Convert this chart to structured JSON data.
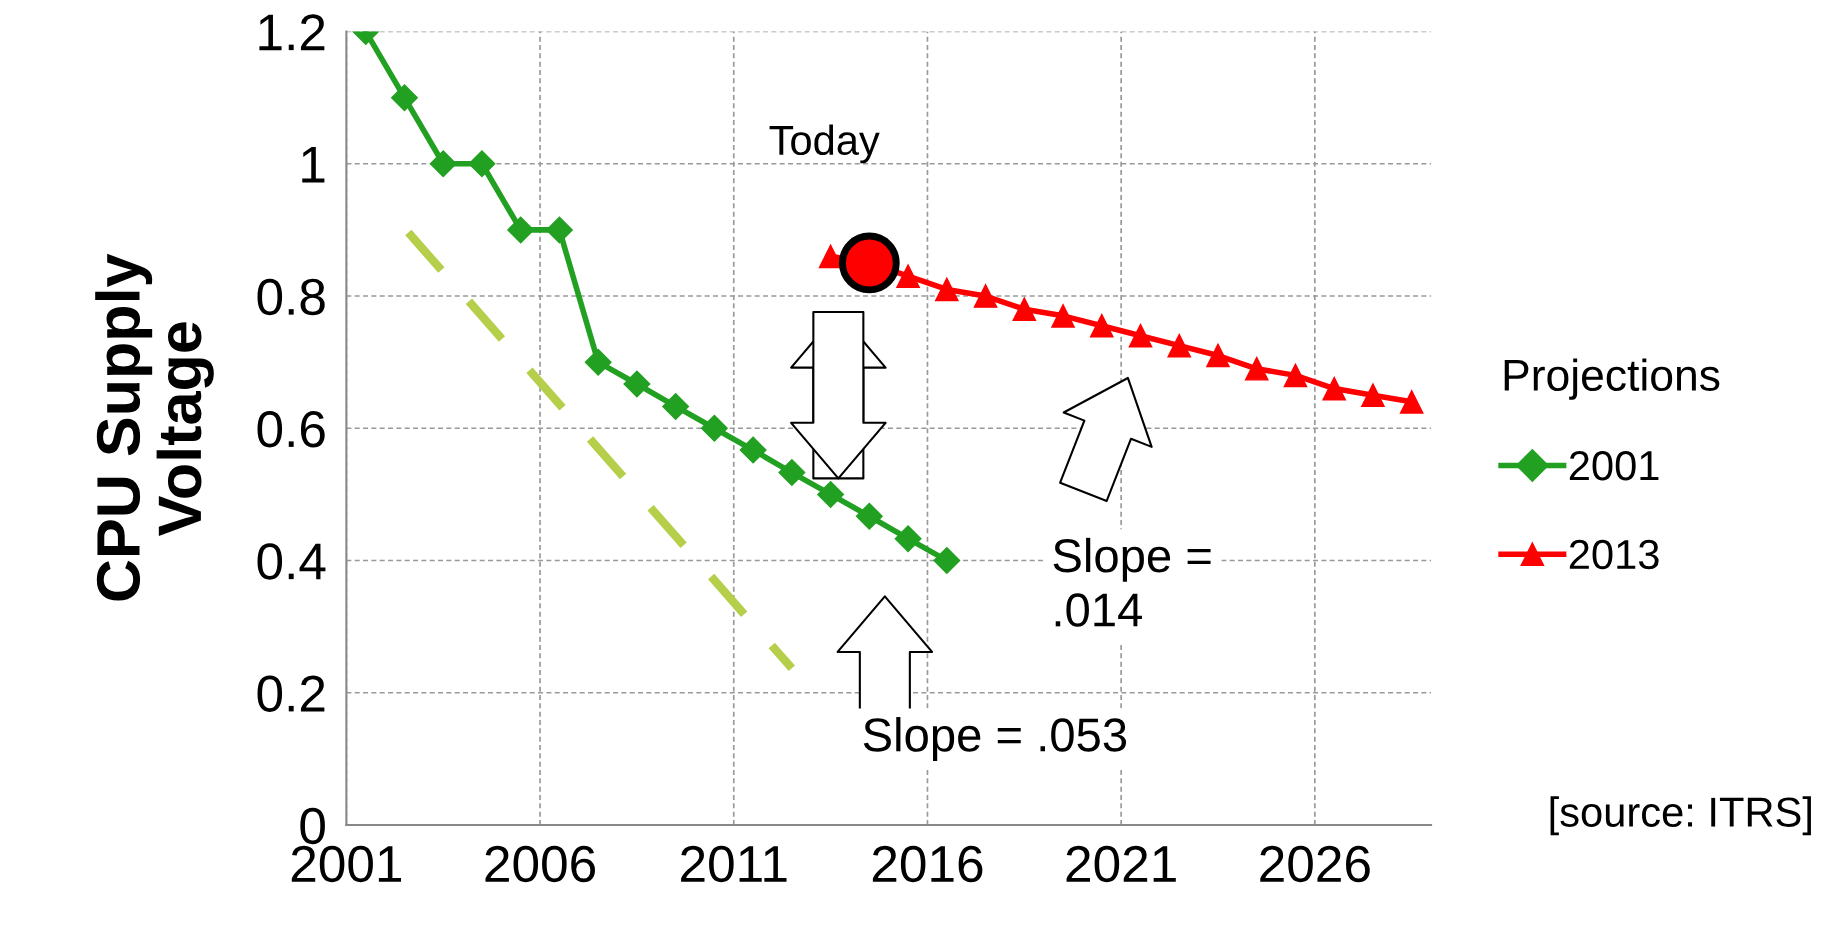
{
  "chart_data": {
    "type": "line",
    "ylabel": "CPU Supply\nVoltage",
    "legend_title": "Projections",
    "xlim": [
      2001,
      2029
    ],
    "xticks": [
      2001,
      2006,
      2011,
      2016,
      2021,
      2026
    ],
    "ylim": [
      0,
      1.2
    ],
    "yticks": [
      0,
      0.2,
      0.4,
      0.6,
      0.8,
      1,
      1.2
    ],
    "grid": true,
    "legend": "right",
    "series": [
      {
        "name": "2001",
        "color": "#22a022",
        "marker": "diamond",
        "x": [
          2001.5,
          2002.5,
          2003.5,
          2004.5,
          2005.5,
          2006.5,
          2007.5,
          2008.5,
          2009.5,
          2010.5,
          2011.5,
          2012.5,
          2013.5,
          2014.5,
          2015.5,
          2016.5
        ],
        "values": [
          1.2,
          1.1,
          1.0,
          1.0,
          0.9,
          0.9,
          0.7,
          0.667,
          0.633,
          0.6,
          0.567,
          0.533,
          0.5,
          0.467,
          0.433,
          0.4
        ]
      },
      {
        "name": "2013",
        "color": "#ff0000",
        "marker": "triangle",
        "x": [
          2013.5,
          2014.5,
          2015.5,
          2016.5,
          2017.5,
          2018.5,
          2019.5,
          2020.5,
          2021.5,
          2022.5,
          2023.5,
          2024.5,
          2025.5,
          2026.5,
          2027.5,
          2028.5
        ],
        "values": [
          0.86,
          0.85,
          0.83,
          0.81,
          0.8,
          0.78,
          0.77,
          0.755,
          0.74,
          0.725,
          0.71,
          0.69,
          0.68,
          0.66,
          0.65,
          0.64
        ]
      },
      {
        "color": "#b5cf4a",
        "marker": "none",
        "line_style": "dashed",
        "x": [
          2002.6,
          2012.5
        ],
        "values": [
          0.896,
          0.237
        ]
      },
      {
        "type": "scatter",
        "color": "#ff0000",
        "marker": "circle",
        "x": [
          2014.5
        ],
        "values": [
          0.85
        ]
      }
    ],
    "annotations": [
      "Today",
      "Slope =\n.014",
      "Slope = .053",
      "[source: ITRS]"
    ]
  }
}
